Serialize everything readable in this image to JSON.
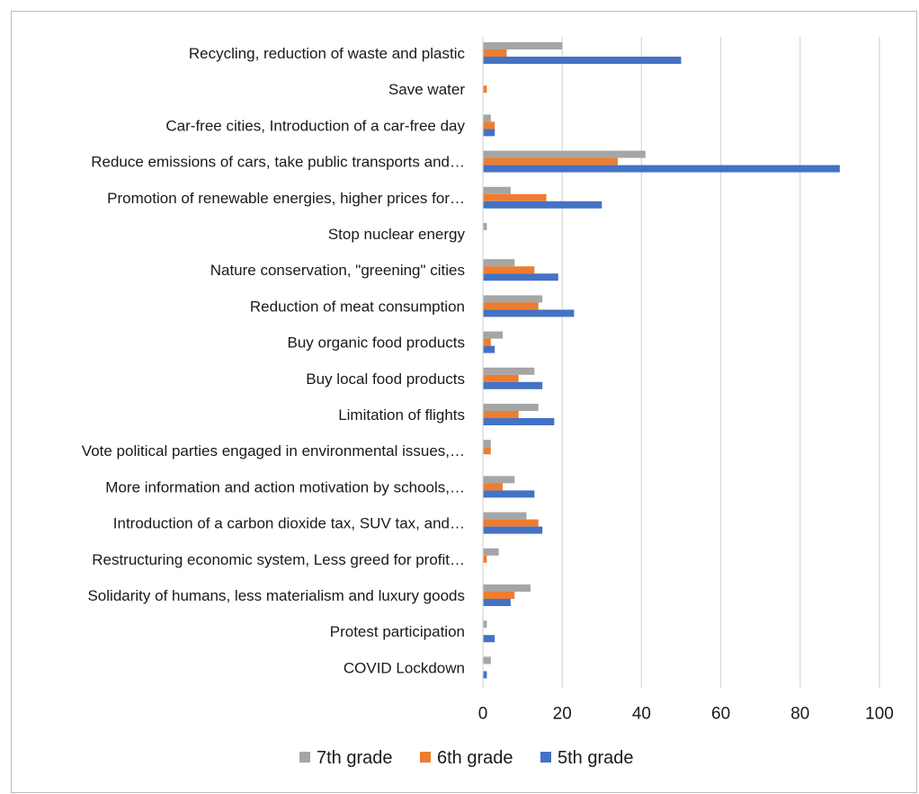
{
  "chart_data": {
    "type": "bar",
    "orientation": "horizontal",
    "categories": [
      "Recycling, reduction of waste and plastic",
      "Save water",
      "Car-free cities, Introduction of a car-free day",
      "Reduce emissions of cars, take public transports and…",
      "Promotion of renewable energies, higher prices for…",
      "Stop nuclear energy",
      "Nature conservation, \"greening\" cities",
      "Reduction of meat consumption",
      "Buy organic food products",
      "Buy local food products",
      "Limitation of flights",
      "Vote political parties engaged in environmental issues,…",
      "More information and action motivation by schools,…",
      "Introduction of a carbon dioxide tax, SUV tax, and…",
      "Restructuring economic system, Less greed for profit…",
      "Solidarity of humans, less materialism and luxury goods",
      "Protest participation",
      "COVID Lockdown"
    ],
    "series": [
      {
        "name": "7th grade",
        "color": "#a5a5a5",
        "values": [
          20,
          0,
          2,
          41,
          7,
          1,
          8,
          15,
          5,
          13,
          14,
          2,
          8,
          11,
          4,
          12,
          1,
          2
        ]
      },
      {
        "name": "6th grade",
        "color": "#ed7d31",
        "values": [
          6,
          1,
          3,
          34,
          16,
          0,
          13,
          14,
          2,
          9,
          9,
          2,
          5,
          14,
          1,
          8,
          0,
          0
        ]
      },
      {
        "name": "5th grade",
        "color": "#4472c4",
        "values": [
          50,
          0,
          3,
          90,
          30,
          0,
          19,
          23,
          3,
          15,
          18,
          0,
          13,
          15,
          0,
          7,
          3,
          1
        ]
      }
    ],
    "xlim": [
      0,
      100
    ],
    "xticks": [
      0,
      20,
      40,
      60,
      80,
      100
    ],
    "grid": true,
    "legend_position": "bottom",
    "title": "",
    "xlabel": "",
    "ylabel": ""
  }
}
